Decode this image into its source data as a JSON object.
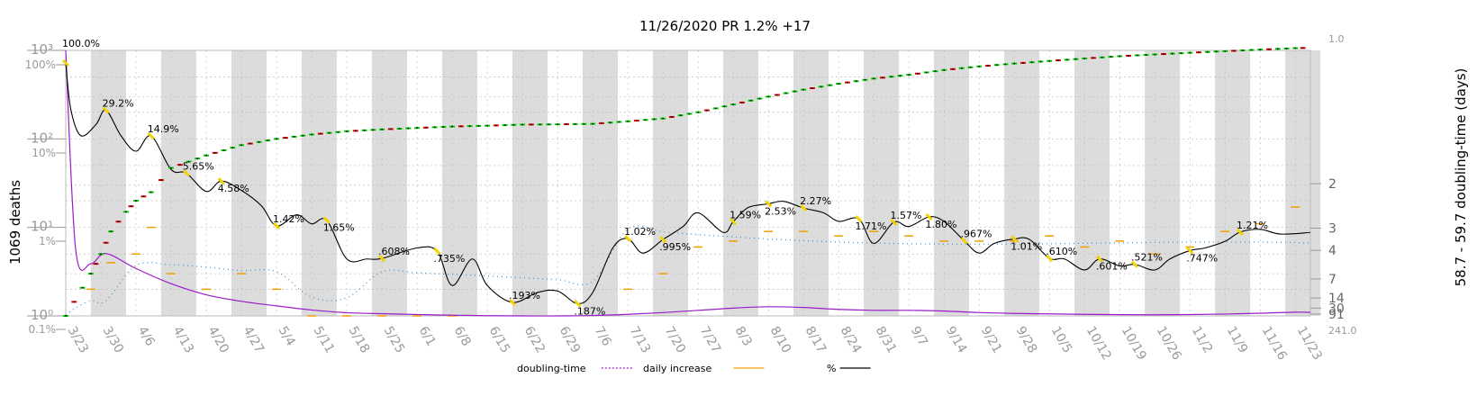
{
  "title": "11/26/2020 PR 1.2% +17",
  "left_axis_label": "1069 deaths",
  "right_axis_label": "58.7 - 59.7 doubling-time (days)",
  "colors": {
    "band": "#dcdcdc",
    "cumulative_up": "#00cc00",
    "cumulative_down": "#dd0000",
    "daily": "#f0a000",
    "pct_line": "#000000",
    "doubling": "#9a1cc8",
    "dotted": "#3a8fd0",
    "marker": "#f2d200",
    "grid": "#bbbbbb",
    "axis_text": "#9a9a9a"
  },
  "chart_data": {
    "type": "line",
    "title": "11/26/2020 PR 1.2% +17",
    "date_range": [
      "3/23",
      "11/26"
    ],
    "x_ticks": [
      "3/23",
      "3/30",
      "4/6",
      "4/13",
      "4/20",
      "4/27",
      "5/4",
      "5/11",
      "5/18",
      "5/25",
      "6/1",
      "6/8",
      "6/15",
      "6/22",
      "6/29",
      "7/6",
      "7/13",
      "7/20",
      "7/27",
      "8/3",
      "8/10",
      "8/17",
      "8/24",
      "8/31",
      "9/7",
      "9/14",
      "9/21",
      "9/28",
      "10/5",
      "10/12",
      "10/19",
      "10/26",
      "11/2",
      "11/9",
      "11/16",
      "11/23"
    ],
    "left_axis": {
      "label": "1069 deaths",
      "scale": "log",
      "range": [
        1,
        1000
      ],
      "ticks": [
        "10⁰",
        "10¹",
        "10²",
        "10³"
      ],
      "percent_ticks": [
        "0.1%",
        "1%",
        "10%",
        "100%"
      ]
    },
    "right_axis": {
      "label": "58.7 - 59.7 doubling-time (days)",
      "scale": "reciprocal",
      "ticks": [
        "1.0",
        "2",
        "3",
        "4",
        "7",
        "14",
        "30",
        "91",
        "241.0"
      ]
    },
    "grid": true,
    "legend_position": "bottom",
    "legend": [
      "doubling-time",
      "daily increase",
      "%"
    ],
    "series": [
      {
        "name": "cumulative deaths",
        "style": "green/red step markers",
        "points": [
          [
            "3/23",
            1
          ],
          [
            "3/28",
            3
          ],
          [
            "3/30",
            5
          ],
          [
            "4/1",
            9
          ],
          [
            "4/4",
            15
          ],
          [
            "4/6",
            20
          ],
          [
            "4/9",
            25
          ],
          [
            "4/13",
            47
          ],
          [
            "4/20",
            65
          ],
          [
            "4/27",
            85
          ],
          [
            "5/4",
            100
          ],
          [
            "5/11",
            112
          ],
          [
            "5/18",
            122
          ],
          [
            "5/25",
            128
          ],
          [
            "6/1",
            133
          ],
          [
            "6/8",
            138
          ],
          [
            "6/15",
            141
          ],
          [
            "6/22",
            145
          ],
          [
            "6/29",
            146
          ],
          [
            "7/6",
            148
          ],
          [
            "7/13",
            158
          ],
          [
            "7/20",
            170
          ],
          [
            "7/27",
            200
          ],
          [
            "8/3",
            245
          ],
          [
            "8/10",
            300
          ],
          [
            "8/17",
            360
          ],
          [
            "8/24",
            420
          ],
          [
            "8/31",
            480
          ],
          [
            "9/7",
            530
          ],
          [
            "9/14",
            600
          ],
          [
            "9/21",
            660
          ],
          [
            "9/28",
            710
          ],
          [
            "10/5",
            760
          ],
          [
            "10/12",
            810
          ],
          [
            "10/19",
            860
          ],
          [
            "10/26",
            900
          ],
          [
            "11/2",
            940
          ],
          [
            "11/9",
            980
          ],
          [
            "11/16",
            1020
          ],
          [
            "11/23",
            1060
          ],
          [
            "11/26",
            1069
          ]
        ]
      },
      {
        "name": "%",
        "style": "black line",
        "points": [
          [
            "3/23",
            100.0
          ],
          [
            "3/24",
            30
          ],
          [
            "3/26",
            15
          ],
          [
            "3/29",
            20
          ],
          [
            "3/31",
            29.2
          ],
          [
            "4/3",
            15
          ],
          [
            "4/6",
            10
          ],
          [
            "4/9",
            14.9
          ],
          [
            "4/13",
            6.2
          ],
          [
            "4/16",
            5.65
          ],
          [
            "4/20",
            3.5
          ],
          [
            "4/23",
            4.58
          ],
          [
            "4/27",
            3.6
          ],
          [
            "5/1",
            2.4
          ],
          [
            "5/4",
            1.42
          ],
          [
            "5/8",
            1.9
          ],
          [
            "5/11",
            1.5
          ],
          [
            "5/14",
            1.65
          ],
          [
            "5/18",
            0.6
          ],
          [
            "5/22",
            0.6
          ],
          [
            "5/25",
            0.608
          ],
          [
            "6/1",
            0.8
          ],
          [
            "6/5",
            0.735
          ],
          [
            "6/8",
            0.3
          ],
          [
            "6/12",
            0.6
          ],
          [
            "6/15",
            0.3
          ],
          [
            "6/20",
            0.193
          ],
          [
            "6/25",
            0.25
          ],
          [
            "6/29",
            0.26
          ],
          [
            "7/3",
            0.187
          ],
          [
            "7/6",
            0.25
          ],
          [
            "7/10",
            0.8
          ],
          [
            "7/13",
            1.02
          ],
          [
            "7/16",
            0.7
          ],
          [
            "7/20",
            0.995
          ],
          [
            "7/24",
            1.4
          ],
          [
            "7/27",
            2.0
          ],
          [
            "8/1",
            1.2
          ],
          [
            "8/3",
            1.59
          ],
          [
            "8/6",
            2.3
          ],
          [
            "8/10",
            2.53
          ],
          [
            "8/13",
            2.7
          ],
          [
            "8/17",
            2.27
          ],
          [
            "8/21",
            2.0
          ],
          [
            "8/24",
            1.6
          ],
          [
            "8/28",
            1.71
          ],
          [
            "8/31",
            0.9
          ],
          [
            "9/4",
            1.57
          ],
          [
            "9/7",
            1.4
          ],
          [
            "9/11",
            1.8
          ],
          [
            "9/14",
            1.6
          ],
          [
            "9/18",
            0.967
          ],
          [
            "9/21",
            0.7
          ],
          [
            "9/24",
            0.9
          ],
          [
            "9/28",
            1.01
          ],
          [
            "10/1",
            1.0
          ],
          [
            "10/5",
            0.61
          ],
          [
            "10/8",
            0.6
          ],
          [
            "10/12",
            0.45
          ],
          [
            "10/15",
            0.601
          ],
          [
            "10/19",
            0.5
          ],
          [
            "10/22",
            0.521
          ],
          [
            "10/26",
            0.45
          ],
          [
            "10/29",
            0.6
          ],
          [
            "11/2",
            0.747
          ],
          [
            "11/5",
            0.8
          ],
          [
            "11/9",
            0.95
          ],
          [
            "11/12",
            1.21
          ],
          [
            "11/16",
            1.3
          ],
          [
            "11/20",
            1.15
          ],
          [
            "11/26",
            1.2
          ]
        ]
      },
      {
        "name": "doubling-time",
        "style": "purple line, right axis",
        "points": [
          [
            "3/23",
            1.0
          ],
          [
            "3/25",
            4
          ],
          [
            "3/28",
            5
          ],
          [
            "3/31",
            4.2
          ],
          [
            "4/6",
            5.5
          ],
          [
            "4/13",
            8
          ],
          [
            "4/20",
            12
          ],
          [
            "4/27",
            17
          ],
          [
            "5/4",
            24
          ],
          [
            "5/11",
            38
          ],
          [
            "5/18",
            62
          ],
          [
            "5/25",
            80
          ],
          [
            "6/1",
            110
          ],
          [
            "6/8",
            150
          ],
          [
            "6/15",
            200
          ],
          [
            "6/22",
            241
          ],
          [
            "6/29",
            241
          ],
          [
            "7/6",
            180
          ],
          [
            "7/13",
            100
          ],
          [
            "7/20",
            60
          ],
          [
            "7/27",
            40
          ],
          [
            "8/3",
            30
          ],
          [
            "8/10",
            26
          ],
          [
            "8/17",
            28
          ],
          [
            "8/24",
            35
          ],
          [
            "8/31",
            40
          ],
          [
            "9/7",
            40
          ],
          [
            "9/14",
            45
          ],
          [
            "9/21",
            60
          ],
          [
            "9/28",
            75
          ],
          [
            "10/5",
            85
          ],
          [
            "10/12",
            100
          ],
          [
            "10/19",
            115
          ],
          [
            "10/26",
            120
          ],
          [
            "11/2",
            110
          ],
          [
            "11/9",
            90
          ],
          [
            "11/16",
            70
          ],
          [
            "11/23",
            55
          ],
          [
            "11/26",
            58
          ]
        ]
      },
      {
        "name": "daily increase",
        "style": "orange dashes",
        "points": [
          [
            "3/28",
            2
          ],
          [
            "4/1",
            4
          ],
          [
            "4/6",
            5
          ],
          [
            "4/9",
            10
          ],
          [
            "4/13",
            3
          ],
          [
            "4/20",
            2
          ],
          [
            "4/27",
            3
          ],
          [
            "5/4",
            2
          ],
          [
            "5/11",
            1
          ],
          [
            "5/18",
            1
          ],
          [
            "5/25",
            1
          ],
          [
            "6/1",
            1
          ],
          [
            "6/8",
            1
          ],
          [
            "7/13",
            2
          ],
          [
            "7/20",
            3
          ],
          [
            "7/27",
            6
          ],
          [
            "8/3",
            7
          ],
          [
            "8/10",
            9
          ],
          [
            "8/17",
            9
          ],
          [
            "8/24",
            8
          ],
          [
            "8/31",
            9
          ],
          [
            "9/7",
            8
          ],
          [
            "9/14",
            7
          ],
          [
            "9/21",
            7
          ],
          [
            "9/28",
            7
          ],
          [
            "10/5",
            8
          ],
          [
            "10/12",
            6
          ],
          [
            "10/19",
            7
          ],
          [
            "10/26",
            5
          ],
          [
            "11/2",
            6
          ],
          [
            "11/9",
            9
          ],
          [
            "11/16",
            11
          ],
          [
            "11/23",
            17
          ]
        ]
      }
    ],
    "annotations": [
      "100.0%",
      "29.2%",
      "14.9%",
      "5.65%",
      "4.58%",
      "1.42%",
      "1.65%",
      ".608%",
      ".735%",
      ".193%",
      ".187%",
      "1.02%",
      ".995%",
      "1.59%",
      "2.53%",
      "2.27%",
      "1.71%",
      "1.57%",
      "1.80%",
      ".967%",
      "1.01%",
      ".610%",
      ".601%",
      ".521%",
      ".747%",
      "1.21%"
    ]
  }
}
